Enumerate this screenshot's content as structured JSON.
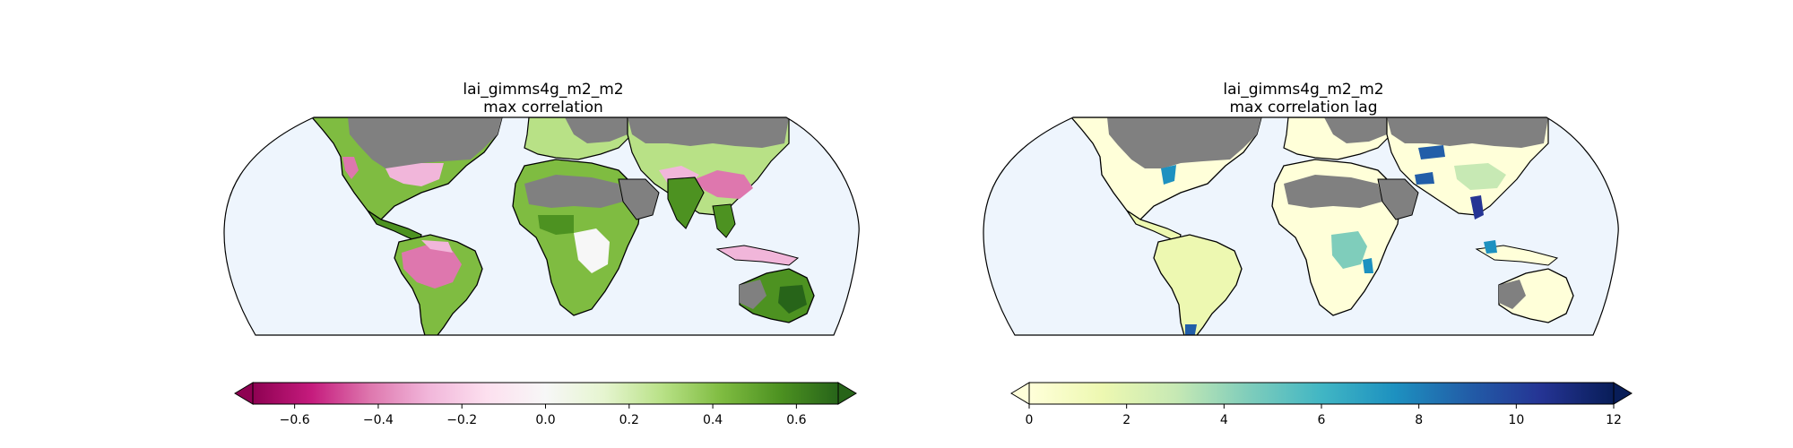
{
  "maps": [
    {
      "title_line1": "lai_gimms4g_m2_m2",
      "title_line2": "max correlation"
    },
    {
      "title_line1": "lai_gimms4g_m2_m2",
      "title_line2": "max correlation lag"
    }
  ],
  "colorbars": [
    {
      "colormap": "PiYG",
      "range": [
        -0.7,
        0.7
      ],
      "extend": "both",
      "ticks": [
        "−0.6",
        "−0.4",
        "−0.2",
        "0.0",
        "0.2",
        "0.4",
        "0.6"
      ],
      "tick_values": [
        -0.6,
        -0.4,
        -0.2,
        0.0,
        0.2,
        0.4,
        0.6
      ],
      "colors": [
        "#8e0152",
        "#c51b7d",
        "#de77ae",
        "#f1b6da",
        "#fde0ef",
        "#f7f7f7",
        "#e6f5d0",
        "#b8e186",
        "#7fbc41",
        "#4d9221",
        "#276419"
      ]
    },
    {
      "colormap": "YlGnBu",
      "range": [
        0,
        12
      ],
      "extend": "both",
      "ticks": [
        "0",
        "2",
        "4",
        "6",
        "8",
        "10",
        "12"
      ],
      "tick_values": [
        0,
        2,
        4,
        6,
        8,
        10,
        12
      ],
      "colors": [
        "#ffffd9",
        "#edf8b1",
        "#c7e9b4",
        "#7fcdbb",
        "#41b6c4",
        "#1d91c0",
        "#225ea8",
        "#253494",
        "#081d58"
      ]
    }
  ],
  "style": {
    "ocean": "#eef5fd",
    "no_data_land": "#808080",
    "coastline": "#000000"
  }
}
